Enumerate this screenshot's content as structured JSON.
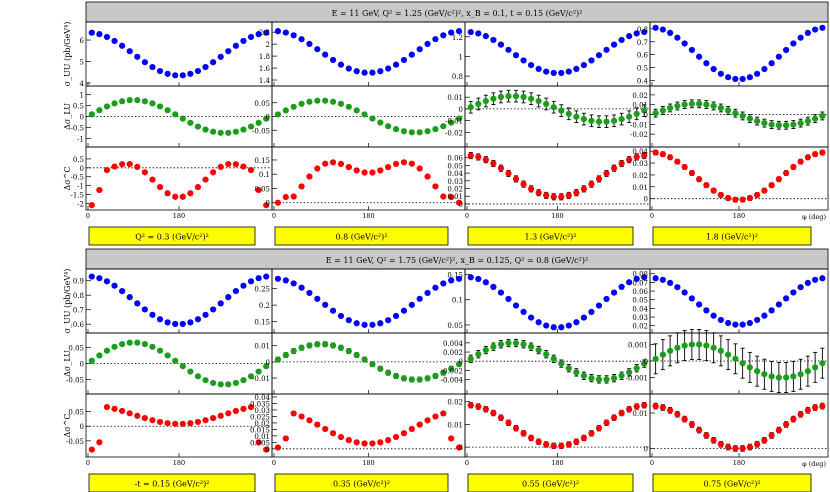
{
  "figure": {
    "phi_label": "φ (deg)",
    "ylabels": {
      "uu": "σ_UU (pb/GeV⁴)",
      "lu": "Δσ_LU",
      "c": "Δσ^C"
    }
  },
  "colors": {
    "uu": "#0000ff",
    "lu": "#1a9e1a",
    "c": "#ff0000",
    "header": "#c8c8c8",
    "footer": "#ffff00"
  },
  "chart_data": [
    {
      "type": "scatter",
      "block": "top",
      "title": "E = 11 GeV,  Q² = 1.25 (GeV/c²)²,  x_B = 0.1,  t = 0.15 (GeV/c²)²",
      "xlabel": "φ (deg)",
      "xlim": [
        0,
        360
      ],
      "columns": [
        {
          "label": "Q² = 0.3 (GeV/c²)²",
          "uu": {
            "amp": [
              5.35,
              1.0,
              0.0
            ],
            "ylim": [
              4.0,
              6.7
            ],
            "ticks": [
              4,
              5,
              6
            ],
            "err": 0
          },
          "lu": {
            "amp": [
              0.05,
              0.75,
              0.28
            ],
            "ylim": [
              -1.25,
              1.25
            ],
            "ticks": [
              -1,
              -0.5,
              0,
              0.5,
              1
            ],
            "err": 0
          },
          "c": {
            "amp": [
              -0.45,
              0.6,
              0.6
            ],
            "ylim": [
              -2.2,
              1.0
            ],
            "ticks": [
              -2,
              -1.5,
              -1,
              -0.5,
              0,
              0.5
            ],
            "err": 0,
            "edge": [
              -2.1,
              -1.25,
              -0.6,
              -0.25
            ]
          }
        },
        {
          "label": "0.8 (GeV/c²)²",
          "uu": {
            "amp": [
              1.87,
              0.35,
              0.0
            ],
            "ylim": [
              1.35,
              2.32
            ],
            "ticks": [
              1.4,
              1.6,
              1.8,
              2,
              2.2
            ],
            "err": 0
          },
          "lu": {
            "amp": [
              0.0,
              0.058,
              0.02
            ],
            "ylim": [
              -0.1,
              0.1
            ],
            "ticks": [
              -0.05,
              0,
              0.05
            ],
            "err": 0
          },
          "c": {
            "amp": [
              0.085,
              -0.065,
              0.045
            ],
            "ylim": [
              -0.015,
              0.185
            ],
            "ticks": [
              0,
              0.05,
              0.1,
              0.15
            ],
            "err": 0,
            "edge": [
              0.0,
              0.02,
              0.075,
              0.11
            ]
          }
        },
        {
          "label": "1.3 (GeV/c²)²",
          "uu": {
            "amp": [
              1.04,
              0.21,
              0.0
            ],
            "ylim": [
              0.73,
              1.32
            ],
            "ticks": [
              0.8,
              1,
              1.2
            ],
            "err": 0
          },
          "lu": {
            "amp": [
              0.0,
              0.011,
              0.0
            ],
            "ylim": [
              -0.03,
              0.17
            ],
            "ticks": [
              -0.02,
              0,
              0.02
            ],
            "err": 0.005,
            "lu_lim": [
              -0.03,
              0.017
            ],
            "lu_ticks": [
              -0.02,
              -0.01,
              0,
              0.01
            ]
          },
          "c": {
            "amp": [
              0.036,
              0.027,
              0.0
            ],
            "ylim": [
              -0.004,
              0.07
            ],
            "ticks": [
              0,
              0.01,
              0.02,
              0.03,
              0.04,
              0.05,
              0.06
            ],
            "err": 0.004
          }
        },
        {
          "label": "1.8 (GeV/c²)²",
          "uu": {
            "amp": [
              0.61,
              0.2,
              0.0
            ],
            "ylim": [
              0.38,
              0.83
            ],
            "ticks": [
              0.4,
              0.5,
              0.6,
              0.7,
              0.8
            ],
            "err": 0
          },
          "lu": {
            "amp": [
              0.0,
              0.011,
              0.0
            ],
            "ylim": [
              -0.03,
              0.026
            ],
            "ticks": [
              -0.02,
              -0.01,
              0,
              0.01,
              0.02
            ],
            "err": 0.004
          },
          "c": {
            "amp": [
              0.019,
              0.02,
              0.0
            ],
            "ylim": [
              -0.007,
              0.041
            ],
            "ticks": [
              0,
              0.01,
              0.02,
              0.03,
              0.04
            ],
            "err": 0.002
          }
        }
      ],
      "tick_labels_x": [
        "0",
        "180"
      ]
    },
    {
      "type": "scatter",
      "block": "bottom",
      "title": "E = 11 GeV,  Q² = 1.75 (GeV/c²)²,  x_B = 0.125,  Q² = 0.8 (GeV/c²)²",
      "xlabel": "φ (deg)",
      "xlim": [
        0,
        360
      ],
      "columns": [
        {
          "label": "-t = 0.15 (GeV/c²)²",
          "uu": {
            "amp": [
              0.765,
              0.165,
              0.0
            ],
            "ylim": [
              0.56,
              0.96
            ],
            "ticks": [
              0.6,
              0.7,
              0.8,
              0.9
            ],
            "err": 0
          },
          "lu": {
            "amp": [
              0.0,
              0.065,
              0.0
            ],
            "ylim": [
              -0.085,
              0.085
            ],
            "ticks": [
              -0.05,
              0,
              0.05
            ],
            "err": 0
          },
          "c": {
            "amp": [
              0.04,
              0.032,
              0.0
            ],
            "ylim": [
              -0.095,
              0.1
            ],
            "ticks": [
              -0.05,
              0,
              0.05
            ],
            "err": 0,
            "edge": [
              -0.08,
              -0.055,
              0.0,
              0.03
            ]
          }
        },
        {
          "label": "0.35 (GeV/c²)²",
          "uu": {
            "amp": [
              0.21,
              0.07,
              0.0
            ],
            "ylim": [
              0.125,
              0.3
            ],
            "ticks": [
              0.15,
              0.2,
              0.25
            ],
            "err": 0
          },
          "lu": {
            "amp": [
              0.0,
              0.011,
              0.0
            ],
            "ylim": [
              -0.018,
              0.016
            ],
            "ticks": [
              -0.01,
              0,
              0.01
            ],
            "err": 0.0015
          },
          "c": {
            "amp": [
              0.017,
              0.013,
              0.0
            ],
            "ylim": [
              -0.004,
              0.04
            ],
            "ticks": [
              0,
              0.005,
              0.01,
              0.015,
              0.02,
              0.025,
              0.03,
              0.035,
              0.04
            ],
            "err": 0.0015,
            "edge": [
              0.001,
              0.008,
              0.0,
              0.0
            ]
          }
        },
        {
          "label": "0.55 (GeV/c²)²",
          "uu": {
            "amp": [
              0.095,
              0.05,
              0.0
            ],
            "ylim": [
              0.04,
              0.155
            ],
            "ticks": [
              0.05,
              0.1,
              0.15
            ],
            "err": 0
          },
          "lu": {
            "amp": [
              0.0,
              0.004,
              0.0
            ],
            "ylim": [
              -0.0065,
              0.0055
            ],
            "ticks": [
              -0.004,
              -0.002,
              0,
              0.002,
              0.004
            ],
            "err": 0.0008
          },
          "c": {
            "amp": [
              0.0095,
              0.009,
              0.0
            ],
            "ylim": [
              -0.003,
              0.022
            ],
            "ticks": [
              0,
              0.01,
              0.02
            ],
            "err": 0.0012
          }
        },
        {
          "label": "0.75 (GeV/c²)²",
          "uu": {
            "amp": [
              0.048,
              0.027,
              0.0
            ],
            "ylim": [
              0.015,
              0.082
            ],
            "ticks": [
              0.02,
              0.03,
              0.04,
              0.05,
              0.06,
              0.07,
              0.08
            ],
            "err": 0
          },
          "lu": {
            "amp": [
              0.0,
              0.001,
              0.0
            ],
            "ylim": [
              -0.0018,
              0.0015
            ],
            "ticks": [
              -0.001,
              0,
              0.001
            ],
            "err": 0.0009
          },
          "c": {
            "amp": [
              0.006,
              0.006,
              0.0
            ],
            "ylim": [
              -0.0015,
              0.0145
            ],
            "ticks": [
              0,
              0.01
            ],
            "err": 0.0008
          }
        }
      ],
      "tick_labels_x": [
        "0",
        "180"
      ]
    }
  ]
}
